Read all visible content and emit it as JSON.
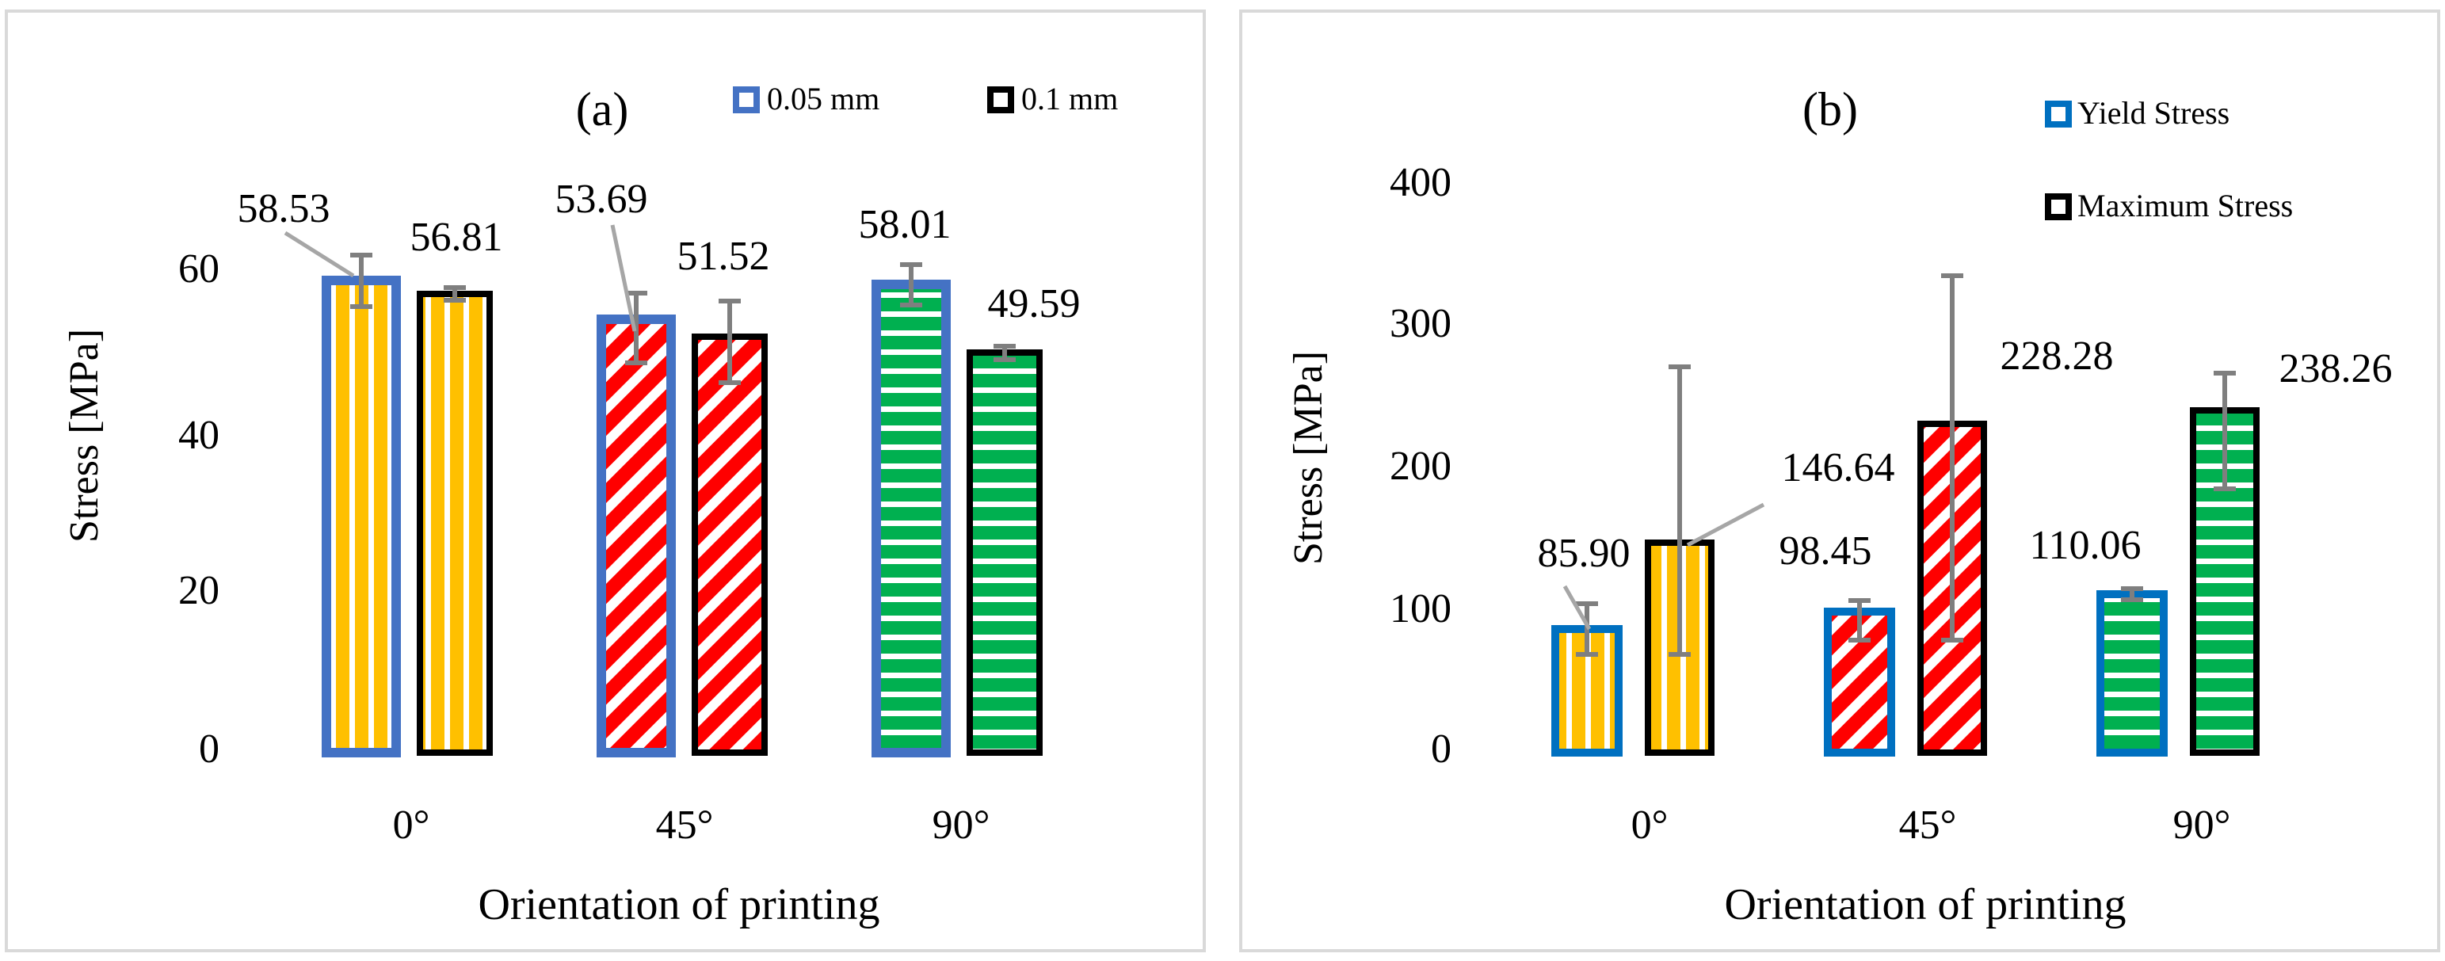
{
  "colors": {
    "series_a_outline": "#4472c4",
    "series_b_outline": "#000000",
    "yield_outline": "#0070c0",
    "orange": "#ffc000",
    "red": "#ff0000",
    "green": "#00b050",
    "error_bar": "#7f7f7f",
    "blue_label": "#2e75b6",
    "panel_border": "#d9d9d9"
  },
  "chart_data": [
    {
      "type": "bar",
      "panel_label": "(a)",
      "categories": [
        "0°",
        "45°",
        "90°"
      ],
      "category_fills": [
        "vertical-stripes-orange",
        "diagonal-stripes-red",
        "horizontal-stripes-green"
      ],
      "series": [
        {
          "name": "0.05 mm",
          "values": [
            58.53,
            53.69,
            58.01
          ],
          "value_labels": [
            "58.53",
            "53.69",
            "58.01"
          ],
          "errors": [
            3.2,
            4.5,
            2.5
          ],
          "outline": "#4472c4",
          "label_color": "#2e75b6"
        },
        {
          "name": "0.1 mm",
          "values": [
            56.81,
            51.52,
            49.59
          ],
          "value_labels": [
            "56.81",
            "51.52",
            "49.59"
          ],
          "errors": [
            0.8,
            5.2,
            0.9
          ],
          "outline": "#000000",
          "label_color": "#000000"
        }
      ],
      "xlabel": "Orientation of printing",
      "ylabel": "Stress [MPa]",
      "ylim": [
        0,
        70
      ],
      "yticks": [
        0,
        20,
        40,
        60
      ],
      "ytick_labels": [
        "0",
        "20",
        "40",
        "60"
      ],
      "grid": false,
      "legend": "top-right"
    },
    {
      "type": "bar",
      "panel_label": "(b)",
      "categories": [
        "0°",
        "45°",
        "90°"
      ],
      "category_fills": [
        "vertical-stripes-orange",
        "diagonal-stripes-red",
        "horizontal-stripes-green"
      ],
      "series": [
        {
          "name": "Yield Stress",
          "values": [
            85.9,
            98.45,
            110.06
          ],
          "value_labels": [
            "85.90",
            "98.45",
            "110.06"
          ],
          "errors": [
            17,
            14,
            4
          ],
          "outline": "#0070c0",
          "label_color": "#000000"
        },
        {
          "name": "Maximum Stress",
          "values": [
            146.64,
            228.28,
            238.26
          ],
          "value_labels": [
            "146.64",
            "228.28",
            "238.26"
          ],
          "errors": [
            123,
            128,
            45
          ],
          "outline": "#000000",
          "label_color": "#000000"
        }
      ],
      "xlabel": "Orientation of printing",
      "ylabel": "Stress [MPa]",
      "ylim": [
        0,
        400
      ],
      "yticks": [
        0,
        100,
        200,
        300,
        400
      ],
      "ytick_labels": [
        "0",
        "100",
        "200",
        "300",
        "400"
      ],
      "grid": false,
      "legend": "top-right"
    }
  ]
}
